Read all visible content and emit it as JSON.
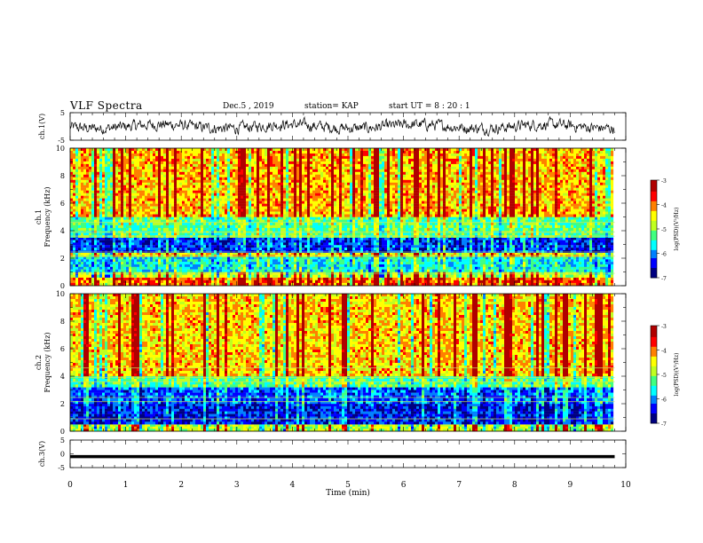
{
  "header": {
    "title": "VLF Spectra",
    "date": "Dec.5 , 2019",
    "station": "station= KAP",
    "start": "start UT =  8 : 20 : 1"
  },
  "colors": {
    "trace": "#000000",
    "axis": "#000000",
    "cmap": [
      "#000080",
      "#0000ff",
      "#0080ff",
      "#00ffff",
      "#40ff80",
      "#c0ff20",
      "#ffff00",
      "#ff8000",
      "#ff0000",
      "#b00000"
    ]
  },
  "chart_data": [
    {
      "type": "line",
      "panel": "ch1-waveform",
      "ylabel": "ch.1(V)",
      "ylim": [
        -5,
        5
      ],
      "yticks": [
        "5",
        "-5"
      ],
      "xlim": [
        0,
        10
      ],
      "trace_extent_min": 9.8,
      "description": "noisy waveform centred near 0 V, amplitude about ±2 V"
    },
    {
      "type": "heatmap",
      "panel": "ch1-spectrogram",
      "ylabel": "ch.1\nFrequency (kHz)",
      "ylabel_line1": "ch.1",
      "ylabel_line2": "Frequency (kHz)",
      "ylim": [
        0,
        10
      ],
      "yticks": [
        "0",
        "2",
        "4",
        "6",
        "8",
        "10"
      ],
      "xlim": [
        0,
        10
      ],
      "bands": [
        {
          "from": 0.0,
          "to": 0.6,
          "level": 0.8
        },
        {
          "from": 0.6,
          "to": 1.0,
          "level": 0.55
        },
        {
          "from": 1.0,
          "to": 2.1,
          "level": 0.35
        },
        {
          "from": 2.1,
          "to": 2.4,
          "level": 0.62
        },
        {
          "from": 2.4,
          "to": 3.5,
          "level": 0.18
        },
        {
          "from": 3.5,
          "to": 4.0,
          "level": 0.45
        },
        {
          "from": 4.0,
          "to": 5.0,
          "level": 0.45
        },
        {
          "from": 5.0,
          "to": 10.0,
          "level": 0.7
        }
      ],
      "colorbar": {
        "label": "log(PSD)(V²/Hz)",
        "ticks": [
          "-3",
          "-4",
          "-5",
          "-6",
          "-7"
        ],
        "range": [
          -7,
          -3
        ]
      }
    },
    {
      "type": "heatmap",
      "panel": "ch2-spectrogram",
      "ylabel_line1": "ch.2",
      "ylabel_line2": "Frequency (kHz)",
      "ylim": [
        0,
        10
      ],
      "yticks": [
        "0",
        "2",
        "4",
        "6",
        "8",
        "10"
      ],
      "xlim": [
        0,
        10
      ],
      "bands": [
        {
          "from": 0.0,
          "to": 0.5,
          "level": 0.55
        },
        {
          "from": 0.5,
          "to": 2.0,
          "level": 0.15
        },
        {
          "from": 2.0,
          "to": 3.2,
          "level": 0.22
        },
        {
          "from": 3.2,
          "to": 4.0,
          "level": 0.45
        },
        {
          "from": 4.0,
          "to": 10.0,
          "level": 0.68
        }
      ],
      "colorbar": {
        "label": "log(PSD)(V²/Hz)",
        "ticks": [
          "-3",
          "-4",
          "-5",
          "-6",
          "-7"
        ],
        "range": [
          -7,
          -3
        ]
      }
    },
    {
      "type": "line",
      "panel": "ch3-waveform",
      "ylabel": "ch.3(V)",
      "ylim": [
        -5,
        5
      ],
      "yticks": [
        "5",
        "0",
        "-5"
      ],
      "xlim": [
        0,
        10
      ],
      "trace_extent_min": 9.8,
      "description": "flat thick line near -1 V"
    }
  ],
  "xaxis": {
    "label": "Time (min)",
    "ticks": [
      "0",
      "1",
      "2",
      "3",
      "4",
      "5",
      "6",
      "7",
      "8",
      "9",
      "10"
    ]
  }
}
